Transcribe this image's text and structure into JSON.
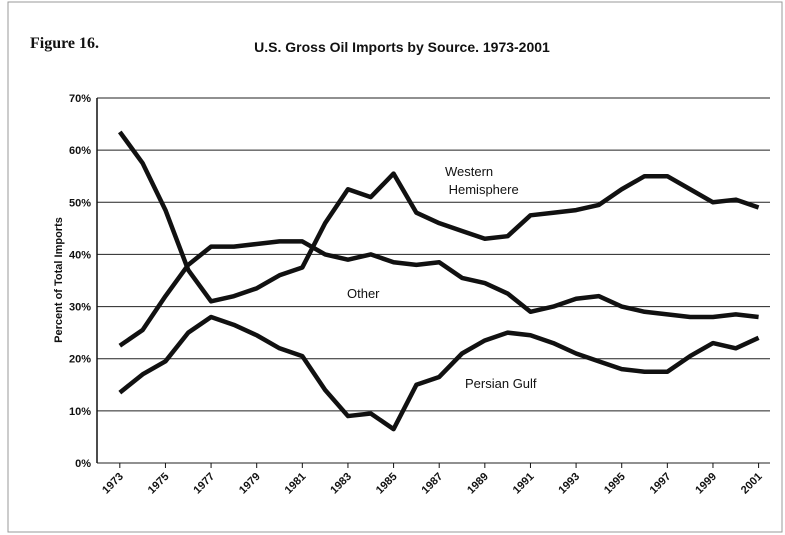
{
  "chart_data": {
    "type": "line",
    "figure_label": "Figure 16.",
    "title": "U.S. Gross Oil Imports by Source. 1973-2001",
    "y_label": "Percent of Total Imports",
    "x": [
      1973,
      1974,
      1975,
      1976,
      1977,
      1978,
      1979,
      1980,
      1981,
      1982,
      1983,
      1984,
      1985,
      1986,
      1987,
      1988,
      1989,
      1990,
      1991,
      1992,
      1993,
      1994,
      1995,
      1996,
      1997,
      1998,
      1999,
      2000,
      2001
    ],
    "series": [
      {
        "name": "Western Hemisphere",
        "color": "#111111",
        "values": [
          63.5,
          57.5,
          48.5,
          37,
          31,
          32,
          33.5,
          36,
          37.5,
          46,
          52.5,
          51,
          55.5,
          48,
          46,
          44.5,
          43,
          43.5,
          47.5,
          48,
          48.5,
          49.5,
          52.5,
          55,
          55,
          52.5,
          50,
          50.5,
          49
        ]
      },
      {
        "name": "Other",
        "color": "#111111",
        "values": [
          22.5,
          25.5,
          32,
          38,
          41.5,
          41.5,
          42,
          42.5,
          42.5,
          40,
          39,
          40,
          38.5,
          38,
          38.5,
          35.5,
          34.5,
          32.5,
          29,
          30,
          31.5,
          32,
          30,
          29,
          28.5,
          28,
          28,
          28.5,
          28
        ]
      },
      {
        "name": "Persian Gulf",
        "color": "#111111",
        "values": [
          13.5,
          17,
          19.5,
          25,
          28,
          26.5,
          24.5,
          22,
          20.5,
          14,
          9,
          9.5,
          6.5,
          15,
          16.5,
          21,
          23.5,
          25,
          24.5,
          23,
          21,
          19.5,
          18,
          17.5,
          17.5,
          20.5,
          23,
          22,
          24
        ]
      }
    ],
    "xlim": [
      1972,
      2001.5
    ],
    "xticks": [
      1973,
      1975,
      1977,
      1979,
      1981,
      1983,
      1985,
      1987,
      1989,
      1991,
      1993,
      1995,
      1997,
      1999,
      2001
    ],
    "ylim": [
      0,
      70
    ],
    "yticks": [
      {
        "value": 0,
        "label": "0%"
      },
      {
        "value": 10,
        "label": "10%"
      },
      {
        "value": 20,
        "label": "20%"
      },
      {
        "value": 30,
        "label": "30%"
      },
      {
        "value": 40,
        "label": "40%"
      },
      {
        "value": 50,
        "label": "50%"
      },
      {
        "value": 60,
        "label": "60%"
      },
      {
        "value": 70,
        "label": "70%"
      }
    ],
    "grid": true
  }
}
